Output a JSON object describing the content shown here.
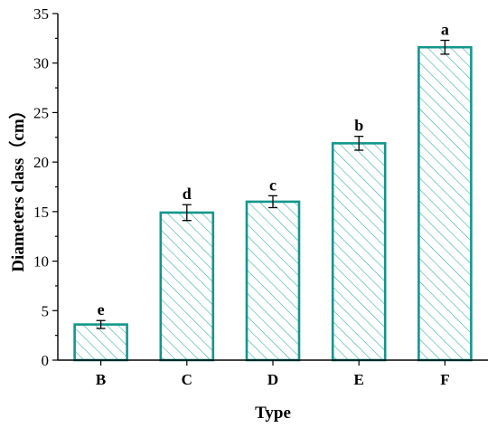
{
  "chart_data": {
    "type": "bar",
    "categories": [
      "B",
      "C",
      "D",
      "E",
      "F"
    ],
    "values": [
      3.6,
      14.9,
      16.0,
      21.9,
      31.6
    ],
    "errors": [
      0.4,
      0.8,
      0.6,
      0.7,
      0.7
    ],
    "letters": [
      "e",
      "d",
      "c",
      "b",
      "a"
    ],
    "title": "",
    "xlabel": "Type",
    "ylabel": "Diameters class（cm）",
    "ylim": [
      0,
      35
    ],
    "yticks": [
      "0",
      "5",
      "10",
      "15",
      "20",
      "25",
      "30",
      "35"
    ],
    "grid": false,
    "bar_style": "diagonal-hatch",
    "colors": {
      "bar_edge": "#13968c",
      "hatch": "#2aa69c",
      "axis": "#000000"
    }
  }
}
